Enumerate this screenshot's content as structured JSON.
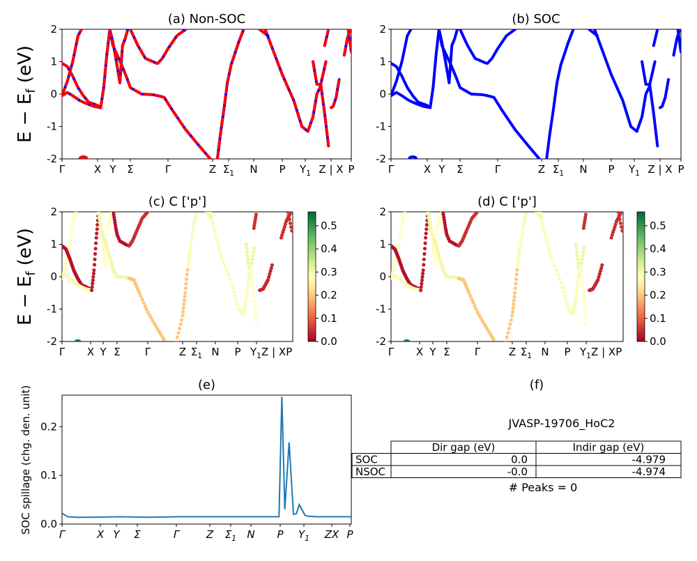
{
  "figure": {
    "ylabel": "E − E",
    "ylabel_sub": "f",
    "ylabel_unit": " (eV)",
    "spillage_ylabel": "SOC spillage (chg. den. unit)"
  },
  "kpath": [
    "Γ",
    "X",
    "Y",
    "Σ",
    "Γ",
    "Z",
    "Σ1",
    "N",
    "P",
    "Y1",
    "Z | X",
    "P"
  ],
  "colorbar": {
    "ticks": [
      "0.0",
      "0.1",
      "0.2",
      "0.3",
      "0.4",
      "0.5"
    ],
    "colormap": "RdYlGn",
    "range": [
      0.0,
      0.56
    ]
  },
  "chart_data": [
    {
      "panel": "a",
      "type": "line",
      "title": "(a) Non-SOC",
      "xlabel": "",
      "ylabel": "E − Ef (eV)",
      "ylim": [
        -2,
        2
      ],
      "yticks": [
        "-2",
        "-1",
        "0",
        "1",
        "2"
      ],
      "xticks": [
        "Γ",
        "X",
        "Y",
        "Σ",
        "Γ",
        "Z",
        "Σ1",
        "N",
        "P",
        "Y1",
        "Z | X",
        "P"
      ],
      "series_colors": {
        "spin_up": "#0000ff",
        "spin_down": "#ff0000"
      },
      "style": "red dashed over blue solid",
      "bands": [
        {
          "x": [
            0,
            0.15,
            0.3,
            0.45,
            0.55
          ],
          "y": [
            -0.05,
            0.4,
            1.0,
            1.8,
            2.0
          ]
        },
        {
          "x": [
            0,
            0.15,
            0.3,
            0.45,
            0.6,
            0.75,
            1.0,
            1.2
          ],
          "y": [
            0.95,
            0.85,
            0.55,
            0.2,
            -0.05,
            -0.25,
            -0.35,
            -0.42
          ]
        },
        {
          "x": [
            0,
            0.15,
            0.3,
            0.5,
            0.7,
            0.9,
            1.0,
            1.2
          ],
          "y": [
            -0.05,
            0.05,
            -0.05,
            -0.2,
            -0.3,
            -0.38,
            -0.4,
            -0.42
          ]
        },
        {
          "x": [
            1.2,
            1.4,
            1.6,
            1.8
          ],
          "y": [
            -0.42,
            0.2,
            1.2,
            2.0
          ]
        },
        {
          "x": [
            1.8,
            2.0,
            2.2,
            2.4
          ],
          "y": [
            2.0,
            1.6,
            1.0,
            0.35
          ]
        },
        {
          "x": [
            2.4,
            2.55,
            2.7,
            2.85
          ],
          "y": [
            0.35,
            1.5,
            1.7,
            2.0
          ]
        },
        {
          "x": [
            1.8,
            2.0,
            2.25,
            2.5,
            2.8,
            3.0,
            3.3,
            3.6,
            3.73
          ],
          "y": [
            2.0,
            1.5,
            1.2,
            0.9,
            0.5,
            0.2,
            0.0,
            -0.02,
            -0.05
          ]
        },
        {
          "x": [
            3.0,
            3.2,
            3.4,
            3.7
          ],
          "y": [
            2.0,
            1.5,
            1.1,
            0.95
          ]
        },
        {
          "x": [
            3.73,
            3.85,
            4.0,
            4.2,
            4.4
          ],
          "y": [
            0.95,
            1.1,
            1.4,
            1.8,
            2.0
          ]
        },
        {
          "x": [
            3.73,
            3.9,
            4.1,
            4.4,
            4.7,
            4.95
          ],
          "y": [
            -0.05,
            -0.1,
            -0.5,
            -1.1,
            -1.6,
            -2.0
          ]
        },
        {
          "x": [
            5.3,
            5.5,
            5.7,
            5.92
          ],
          "y": [
            -2.0,
            -1.2,
            -0.5,
            0.35
          ]
        },
        {
          "x": [
            5.92,
            6.1,
            6.4,
            6.6
          ],
          "y": [
            0.35,
            0.9,
            1.6,
            2.0
          ]
        },
        {
          "x": [
            7.4,
            7.7,
            8.0,
            8.5,
            8.85,
            9.1
          ],
          "y": [
            2.0,
            1.3,
            0.6,
            -0.2,
            -1.0,
            -1.15
          ]
        },
        {
          "x": [
            9.1,
            9.3,
            9.45,
            9.6
          ],
          "y": [
            -1.15,
            -0.7,
            0.0,
            0.25
          ]
        },
        {
          "x": [
            7.2,
            7.5
          ],
          "y": [
            2.0,
            1.8
          ]
        },
        {
          "x": [
            9.3,
            9.45,
            9.6,
            9.8
          ],
          "y": [
            1.0,
            0.3,
            0.3,
            1.0
          ]
        },
        {
          "x": [
            9.6,
            9.75,
            9.9
          ],
          "y": [
            0.3,
            -0.6,
            -1.6
          ]
        },
        {
          "x": [
            9.75,
            9.9
          ],
          "y": [
            1.5,
            2.0
          ]
        },
        {
          "x": [
            10.0,
            10.1,
            10.25,
            10.4
          ],
          "y": [
            -0.42,
            -0.38,
            -0.1,
            0.45
          ]
        },
        {
          "x": [
            10.65,
            10.8,
            10.95
          ],
          "y": [
            1.2,
            1.7,
            2.0
          ]
        },
        {
          "x": [
            10.85,
            11.0
          ],
          "y": [
            2.0,
            1.3
          ]
        }
      ]
    },
    {
      "panel": "b",
      "type": "line",
      "title": "(b) SOC",
      "xlabel": "",
      "ylabel": "",
      "ylim": [
        -2,
        2
      ],
      "yticks": [
        "-2",
        "-1",
        "0",
        "1",
        "2"
      ],
      "xticks": [
        "Γ",
        "X",
        "Y",
        "Σ",
        "Γ",
        "Z",
        "Σ1",
        "N",
        "P",
        "Y1",
        "Z | X",
        "P"
      ],
      "series_colors": {
        "bands": "#0000ff"
      },
      "style": "blue solid"
    },
    {
      "panel": "c",
      "type": "scatter",
      "title": "(c)  C ['p']",
      "ylim": [
        -2,
        2
      ],
      "yticks": [
        "-2",
        "-1",
        "0",
        "1",
        "2"
      ],
      "xticks": [
        "Γ",
        "X",
        "Y",
        "Σ",
        "Γ",
        "Z",
        "Σ1",
        "N",
        "P",
        "Y1Z | XP"
      ],
      "color_by": "C p-orbital projection",
      "colorbar_label": ""
    },
    {
      "panel": "d",
      "type": "scatter",
      "title": "(d) C ['p']",
      "ylim": [
        -2,
        2
      ],
      "yticks": [
        "-2",
        "-1",
        "0",
        "1",
        "2"
      ],
      "xticks": [
        "Γ",
        "X",
        "Y",
        "Σ",
        "Γ",
        "Z",
        "Σ1",
        "N",
        "P",
        "Y1Z | XP"
      ],
      "color_by": "C p-orbital projection",
      "colorbar_label": ""
    },
    {
      "panel": "e",
      "type": "line",
      "title": "(e)",
      "xlabel": "",
      "ylabel": "SOC spillage (chg. den. unit)",
      "ylim": [
        0,
        0.265
      ],
      "yticks": [
        "0.0",
        "0.1",
        "0.2"
      ],
      "xticks": [
        "Γ",
        "X",
        "Y",
        "Σ",
        "Γ",
        "Z",
        "Σ1",
        "N",
        "P",
        "Y1",
        "ZX",
        "P"
      ],
      "line_color": "#1f77b4",
      "x": [
        0,
        0.02,
        0.05,
        0.1,
        0.2,
        0.3,
        0.4,
        0.5,
        0.6,
        0.7,
        0.75,
        0.76,
        0.77,
        0.785,
        0.8,
        0.81,
        0.82,
        0.84,
        0.85,
        0.86,
        0.88,
        0.9,
        0.95,
        1.0
      ],
      "y": [
        0.022,
        0.015,
        0.014,
        0.014,
        0.015,
        0.014,
        0.015,
        0.015,
        0.015,
        0.015,
        0.015,
        0.262,
        0.03,
        0.168,
        0.02,
        0.021,
        0.04,
        0.018,
        0.016,
        0.016,
        0.015,
        0.015,
        0.015,
        0.015
      ]
    },
    {
      "panel": "f",
      "type": "table",
      "title": "(f)",
      "material": "JVASP-19706_HoC2",
      "columns": [
        "Dir gap (eV)",
        "Indir gap (eV)"
      ],
      "rows": [
        {
          "label": "SOC",
          "dir": "0.0",
          "indir": "-4.979"
        },
        {
          "label": "NSOC",
          "dir": "-0.0",
          "indir": "-4.974"
        }
      ],
      "peaks_text": "# Peaks = 0"
    }
  ]
}
